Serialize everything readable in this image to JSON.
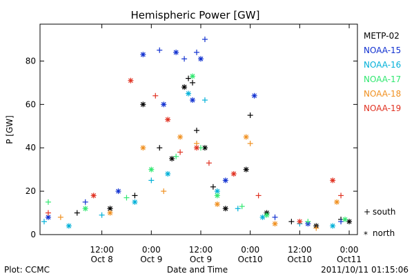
{
  "chart_data": {
    "type": "scatter",
    "title": "Hemispheric Power [GW]",
    "xlabel": "Date and Time",
    "ylabel": "P [GW]",
    "ylim": [
      0,
      97
    ],
    "xlim": [
      "2011-10-07 21:00",
      "2011-10-11 02:00"
    ],
    "x_ticks": [
      {
        "time": "12:00",
        "date": "Oct 8",
        "x": "2011-10-08 12:00"
      },
      {
        "time": "0:00",
        "date": "Oct 9",
        "x": "2011-10-09 00:00"
      },
      {
        "time": "12:00",
        "date": "Oct 9",
        "x": "2011-10-09 12:00"
      },
      {
        "time": "0:00",
        "date": "Oct10",
        "x": "2011-10-10 00:00"
      },
      {
        "time": "12:00",
        "date": "Oct10",
        "x": "2011-10-10 12:00"
      },
      {
        "time": "0:00",
        "date": "Oct11",
        "x": "2011-10-11 00:00"
      }
    ],
    "y_ticks": [
      0,
      20,
      40,
      60,
      80
    ],
    "grid": false,
    "legend_position": "right",
    "markers": {
      "south": {
        "symbol": "+",
        "label": "south"
      },
      "north": {
        "symbol": "*",
        "label": "north"
      }
    },
    "series": [
      {
        "name": "METP-02",
        "color": "#000000",
        "points": [
          [
            "2011-10-08 06:00",
            10,
            "s"
          ],
          [
            "2011-10-08 14:00",
            12,
            "n"
          ],
          [
            "2011-10-08 20:00",
            18,
            "s"
          ],
          [
            "2011-10-08 22:00",
            60,
            "n"
          ],
          [
            "2011-10-09 02:00",
            40,
            "s"
          ],
          [
            "2011-10-09 05:00",
            35,
            "n"
          ],
          [
            "2011-10-09 08:00",
            68,
            "n"
          ],
          [
            "2011-10-09 09:00",
            72,
            "s"
          ],
          [
            "2011-10-09 10:00",
            70,
            "s"
          ],
          [
            "2011-10-09 11:00",
            48,
            "s"
          ],
          [
            "2011-10-09 13:00",
            40,
            "n"
          ],
          [
            "2011-10-09 15:00",
            22,
            "s"
          ],
          [
            "2011-10-09 18:00",
            12,
            "n"
          ],
          [
            "2011-10-09 23:00",
            30,
            "n"
          ],
          [
            "2011-10-10 00:00",
            55,
            "s"
          ],
          [
            "2011-10-10 04:00",
            10,
            "n"
          ],
          [
            "2011-10-10 10:00",
            6,
            "s"
          ],
          [
            "2011-10-10 16:00",
            4,
            "n"
          ],
          [
            "2011-10-10 22:00",
            7,
            "s"
          ],
          [
            "2011-10-11 00:00",
            6,
            "n"
          ]
        ]
      },
      {
        "name": "NOAA-15",
        "color": "#1030d0",
        "points": [
          [
            "2011-10-07 23:00",
            8,
            "n"
          ],
          [
            "2011-10-08 08:00",
            15,
            "s"
          ],
          [
            "2011-10-08 16:00",
            20,
            "n"
          ],
          [
            "2011-10-08 22:00",
            83,
            "n"
          ],
          [
            "2011-10-09 02:00",
            85,
            "s"
          ],
          [
            "2011-10-09 03:00",
            60,
            "n"
          ],
          [
            "2011-10-09 06:00",
            84,
            "n"
          ],
          [
            "2011-10-09 08:00",
            81,
            "s"
          ],
          [
            "2011-10-09 10:00",
            62,
            "n"
          ],
          [
            "2011-10-09 11:00",
            84,
            "s"
          ],
          [
            "2011-10-09 12:00",
            81,
            "n"
          ],
          [
            "2011-10-09 13:00",
            90,
            "s"
          ],
          [
            "2011-10-09 18:00",
            25,
            "n"
          ],
          [
            "2011-10-10 01:00",
            64,
            "n"
          ],
          [
            "2011-10-10 06:00",
            8,
            "s"
          ],
          [
            "2011-10-10 14:00",
            5,
            "n"
          ],
          [
            "2011-10-10 22:00",
            6,
            "s"
          ]
        ]
      },
      {
        "name": "NOAA-16",
        "color": "#00b0d8",
        "points": [
          [
            "2011-10-07 22:00",
            6,
            "s"
          ],
          [
            "2011-10-08 04:00",
            4,
            "n"
          ],
          [
            "2011-10-08 12:00",
            9,
            "s"
          ],
          [
            "2011-10-08 20:00",
            15,
            "n"
          ],
          [
            "2011-10-09 00:00",
            25,
            "s"
          ],
          [
            "2011-10-09 04:00",
            28,
            "n"
          ],
          [
            "2011-10-09 09:00",
            65,
            "n"
          ],
          [
            "2011-10-09 13:00",
            62,
            "s"
          ],
          [
            "2011-10-09 16:00",
            20,
            "n"
          ],
          [
            "2011-10-09 21:00",
            12,
            "s"
          ],
          [
            "2011-10-10 03:00",
            8,
            "n"
          ],
          [
            "2011-10-10 12:00",
            5,
            "s"
          ],
          [
            "2011-10-10 20:00",
            4,
            "n"
          ]
        ]
      },
      {
        "name": "NOAA-17",
        "color": "#30e870",
        "points": [
          [
            "2011-10-07 23:00",
            15,
            "s"
          ],
          [
            "2011-10-08 08:00",
            12,
            "n"
          ],
          [
            "2011-10-08 18:00",
            17,
            "s"
          ],
          [
            "2011-10-09 00:00",
            30,
            "n"
          ],
          [
            "2011-10-09 06:00",
            36,
            "s"
          ],
          [
            "2011-10-09 10:00",
            73,
            "n"
          ],
          [
            "2011-10-09 12:00",
            40,
            "s"
          ],
          [
            "2011-10-09 16:00",
            18,
            "n"
          ],
          [
            "2011-10-09 22:00",
            13,
            "s"
          ],
          [
            "2011-10-10 04:00",
            9,
            "n"
          ],
          [
            "2011-10-10 14:00",
            6,
            "s"
          ],
          [
            "2011-10-10 23:00",
            7,
            "n"
          ]
        ]
      },
      {
        "name": "NOAA-18",
        "color": "#f09020",
        "points": [
          [
            "2011-10-08 02:00",
            8,
            "s"
          ],
          [
            "2011-10-08 14:00",
            10,
            "n"
          ],
          [
            "2011-10-08 22:00",
            40,
            "n"
          ],
          [
            "2011-10-09 03:00",
            20,
            "s"
          ],
          [
            "2011-10-09 07:00",
            45,
            "n"
          ],
          [
            "2011-10-09 11:00",
            42,
            "s"
          ],
          [
            "2011-10-09 16:00",
            14,
            "n"
          ],
          [
            "2011-10-09 23:00",
            45,
            "n"
          ],
          [
            "2011-10-10 00:00",
            42,
            "s"
          ],
          [
            "2011-10-10 06:00",
            5,
            "n"
          ],
          [
            "2011-10-10 16:00",
            3,
            "s"
          ],
          [
            "2011-10-10 21:00",
            15,
            "n"
          ]
        ]
      },
      {
        "name": "NOAA-19",
        "color": "#e03020",
        "points": [
          [
            "2011-10-07 23:00",
            10,
            "s"
          ],
          [
            "2011-10-08 10:00",
            18,
            "n"
          ],
          [
            "2011-10-08 19:00",
            71,
            "n"
          ],
          [
            "2011-10-09 01:00",
            64,
            "s"
          ],
          [
            "2011-10-09 04:00",
            53,
            "n"
          ],
          [
            "2011-10-09 07:00",
            38,
            "s"
          ],
          [
            "2011-10-09 11:00",
            40,
            "n"
          ],
          [
            "2011-10-09 14:00",
            33,
            "s"
          ],
          [
            "2011-10-09 20:00",
            28,
            "n"
          ],
          [
            "2011-10-10 02:00",
            18,
            "s"
          ],
          [
            "2011-10-10 12:00",
            6,
            "n"
          ],
          [
            "2011-10-10 20:00",
            25,
            "n"
          ],
          [
            "2011-10-10 22:00",
            18,
            "s"
          ]
        ]
      }
    ]
  },
  "footer": {
    "left": "Plot: CCMC",
    "center": "Date and Time",
    "right": "2011/10/11 01:15:06"
  }
}
